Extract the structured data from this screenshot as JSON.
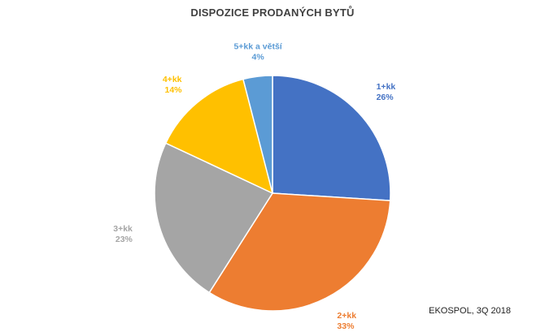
{
  "chart_data": {
    "type": "pie",
    "title": "DISPOZICE PRODANÝCH BYTŮ",
    "categories": [
      "1+kk",
      "2+kk",
      "3+kk",
      "4+kk",
      "5+kk a větší"
    ],
    "values": [
      26,
      33,
      23,
      14,
      4
    ],
    "value_labels": [
      "26%",
      "33%",
      "23%",
      "14%",
      "4%"
    ],
    "colors": [
      "#4472C4",
      "#ED7D31",
      "#A5A5A5",
      "#FFC000",
      "#5B9BD5"
    ],
    "start": "12 o'clock",
    "direction": "clockwise",
    "legend": "none"
  },
  "source": "EKOSPOL, 3Q 2018"
}
